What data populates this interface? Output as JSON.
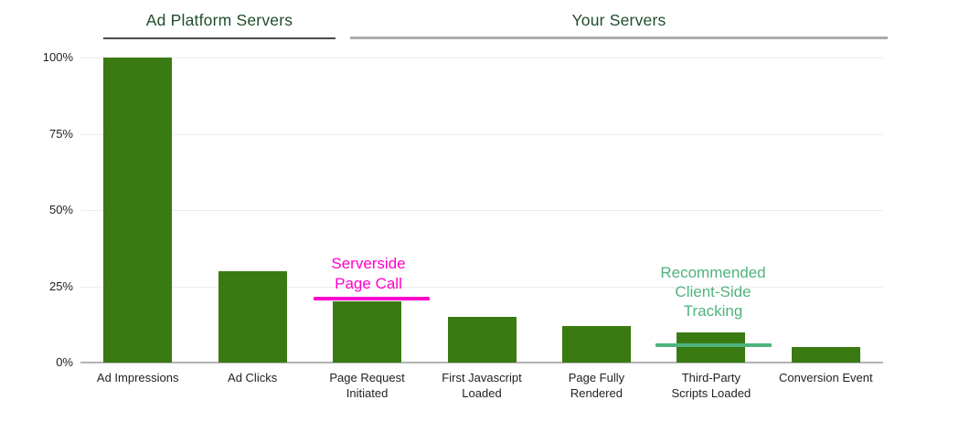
{
  "group_headers": {
    "ad_platform": "Ad Platform Servers",
    "your_servers": "Your Servers"
  },
  "annotations": {
    "serverside": {
      "line1": "Serverside",
      "line2": "Page Call",
      "color": "#ff00cc"
    },
    "client_side": {
      "line1": "Recommended",
      "line2": "Client-Side",
      "line3": "Tracking",
      "color": "#4fb37e"
    }
  },
  "colors": {
    "bar": "#3a7a12",
    "header_text": "#1f4d2b",
    "ad_platform_underline": "#4a4a4a",
    "your_servers_underline": "#ababab",
    "gridline": "#ececec",
    "baseline": "#b3b3b3",
    "axis_text": "#222222"
  },
  "chart_data": {
    "type": "bar",
    "categories": [
      "Ad Impressions",
      "Ad Clicks",
      "Page Request Initiated",
      "First Javascript Loaded",
      "Page Fully Rendered",
      "Third-Party Scripts Loaded",
      "Conversion Event"
    ],
    "category_label_lines": [
      [
        "Ad Impressions"
      ],
      [
        "Ad Clicks"
      ],
      [
        "Page Request",
        "Initiated"
      ],
      [
        "First Javascript",
        "Loaded"
      ],
      [
        "Page Fully",
        "Rendered"
      ],
      [
        "Third-Party",
        "Scripts Loaded"
      ],
      [
        "Conversion Event"
      ]
    ],
    "values": [
      100,
      30,
      20,
      15,
      12,
      10,
      5
    ],
    "unit": "%",
    "y_ticks": [
      {
        "label": "0%",
        "value": 0
      },
      {
        "label": "25%",
        "value": 25
      },
      {
        "label": "50%",
        "value": 50
      },
      {
        "label": "75%",
        "value": 75
      },
      {
        "label": "100%",
        "value": 100
      }
    ],
    "ylim": [
      0,
      100
    ],
    "grid": true,
    "legend": "none",
    "bar_color": "#3a7a12",
    "group_spans": [
      {
        "label": "Ad Platform Servers",
        "categories": [
          "Ad Impressions",
          "Ad Clicks"
        ]
      },
      {
        "label": "Your Servers",
        "categories": [
          "Page Request Initiated",
          "First Javascript Loaded",
          "Page Fully Rendered",
          "Third-Party Scripts Loaded",
          "Conversion Event"
        ]
      }
    ],
    "annotation_rules": [
      {
        "label": "Serverside Page Call",
        "at_category": "Page Request Initiated",
        "level_pct": 20,
        "color": "#ff00cc"
      },
      {
        "label": "Recommended Client-Side Tracking",
        "at_category": "Third-Party Scripts Loaded",
        "level_pct": 6,
        "color": "#4fb37e"
      }
    ]
  }
}
